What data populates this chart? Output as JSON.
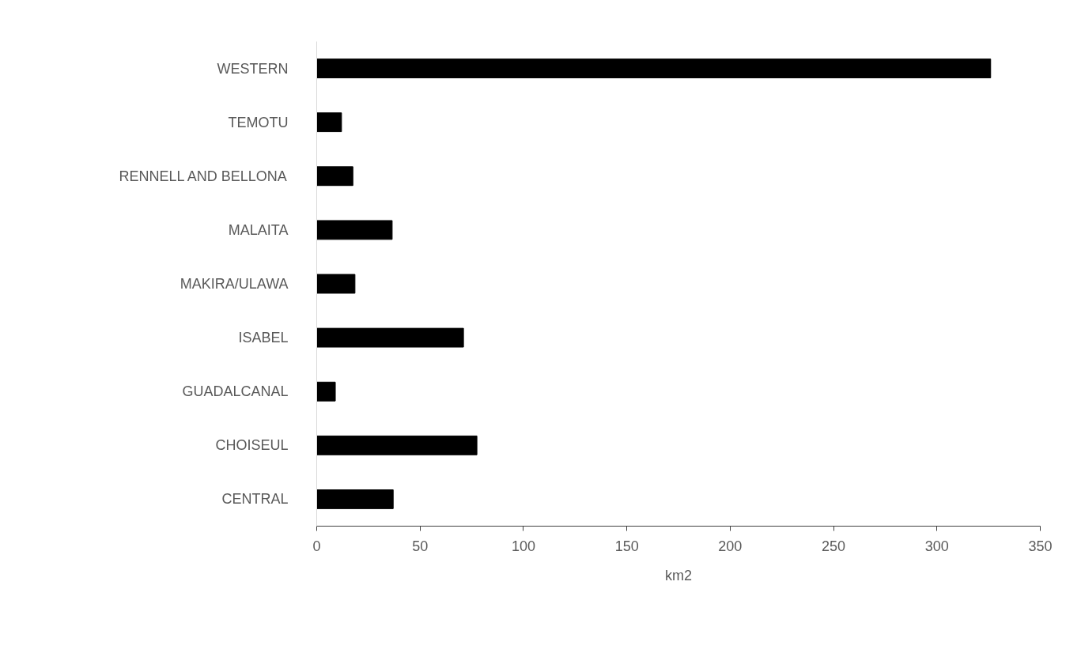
{
  "chart_data": {
    "type": "bar",
    "orientation": "horizontal",
    "xlabel": "km2",
    "categories": [
      "WESTERN",
      "TEMOTU",
      "RENNELL AND BELLONA",
      "MALAITA",
      "MAKIRA/ULAWA",
      "ISABEL",
      "GUADALCANAL",
      "CHOISEUL",
      "CENTRAL"
    ],
    "values": [
      326,
      12,
      17.5,
      36.5,
      18.5,
      71,
      9,
      77.5,
      37
    ],
    "color": "#000000",
    "xlim": [
      0,
      350
    ],
    "xticks": [
      0,
      50,
      100,
      150,
      200,
      250,
      300,
      350
    ],
    "grid": false
  }
}
